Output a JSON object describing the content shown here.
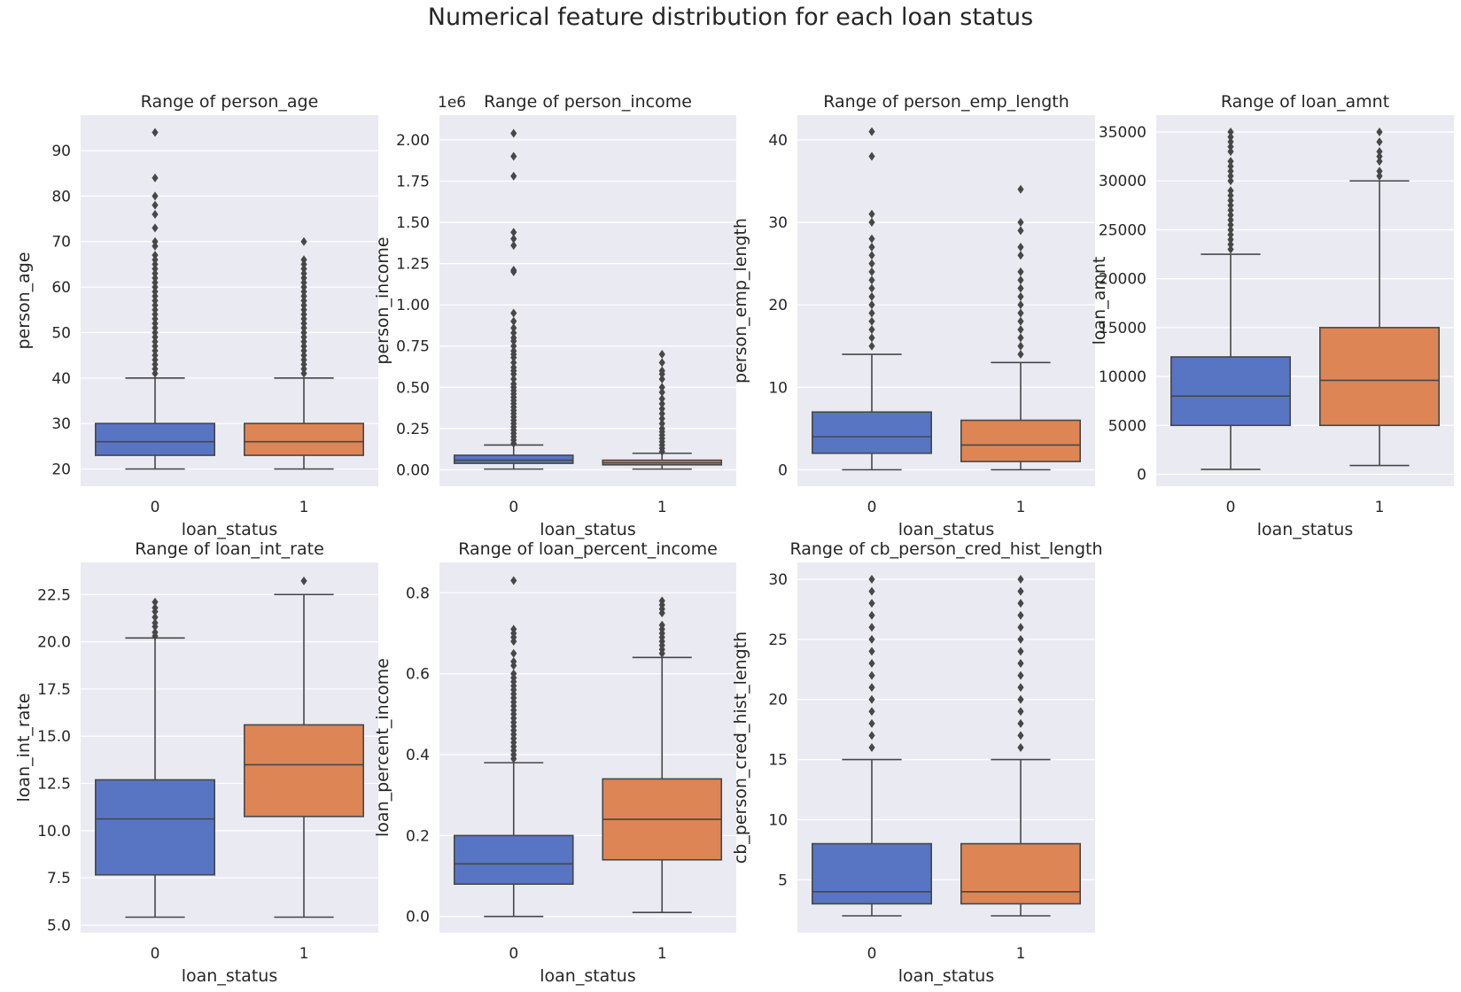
{
  "figure": {
    "suptitle": "Numerical feature distribution for each loan status"
  },
  "colors": {
    "panel_bg": "#eaeaf2",
    "grid": "#ffffff",
    "class0": "#5875c4",
    "class1": "#dd8555",
    "line": "#474747"
  },
  "chart_data": [
    {
      "type": "box",
      "title": "Range of person_age",
      "xlabel": "loan_status",
      "ylabel": "person_age",
      "categories": [
        "0",
        "1"
      ],
      "ylim": [
        16.2,
        97.8
      ],
      "yticks": [
        20,
        30,
        40,
        50,
        60,
        70,
        80,
        90
      ],
      "ytick_labels": [
        "20",
        "30",
        "40",
        "50",
        "60",
        "70",
        "80",
        "90"
      ],
      "boxes": [
        {
          "whislo": 20,
          "q1": 23,
          "med": 26,
          "q3": 30,
          "whishi": 40,
          "fliers": [
            41,
            42,
            43,
            44,
            45,
            46,
            47,
            48,
            49,
            50,
            51,
            52,
            53,
            54,
            55,
            56,
            57,
            58,
            59,
            60,
            61,
            62,
            63,
            64,
            65,
            66,
            67,
            69,
            70,
            73,
            76,
            78,
            80,
            84,
            94
          ]
        },
        {
          "whislo": 20,
          "q1": 23,
          "med": 26,
          "q3": 30,
          "whishi": 40,
          "fliers": [
            41,
            42,
            43,
            44,
            45,
            46,
            47,
            48,
            49,
            50,
            51,
            52,
            53,
            54,
            55,
            56,
            57,
            58,
            59,
            60,
            61,
            62,
            63,
            64,
            65,
            66,
            70
          ]
        }
      ]
    },
    {
      "type": "box",
      "title": "Range of person_income",
      "xlabel": "loan_status",
      "ylabel": "person_income",
      "offset_label": "1e6",
      "categories": [
        "0",
        "1"
      ],
      "ylim": [
        -0.1,
        2.15
      ],
      "yticks": [
        0,
        0.25,
        0.5,
        0.75,
        1.0,
        1.25,
        1.5,
        1.75,
        2.0
      ],
      "ytick_labels": [
        "0.00",
        "0.25",
        "0.50",
        "0.75",
        "1.00",
        "1.25",
        "1.50",
        "1.75",
        "2.00"
      ],
      "boxes": [
        {
          "whislo": 0.004,
          "q1": 0.039,
          "med": 0.058,
          "q3": 0.088,
          "whishi": 0.15,
          "fliers": [
            0.16,
            0.18,
            0.2,
            0.22,
            0.24,
            0.26,
            0.28,
            0.3,
            0.32,
            0.34,
            0.36,
            0.38,
            0.4,
            0.42,
            0.44,
            0.46,
            0.48,
            0.5,
            0.52,
            0.55,
            0.58,
            0.6,
            0.62,
            0.65,
            0.68,
            0.7,
            0.72,
            0.75,
            0.78,
            0.8,
            0.83,
            0.86,
            0.9,
            0.95,
            1.2,
            1.21,
            1.36,
            1.4,
            1.44,
            1.78,
            1.9,
            2.04
          ]
        },
        {
          "whislo": 0.004,
          "q1": 0.03,
          "med": 0.042,
          "q3": 0.058,
          "whishi": 0.1,
          "fliers": [
            0.11,
            0.13,
            0.15,
            0.17,
            0.19,
            0.21,
            0.23,
            0.25,
            0.28,
            0.31,
            0.34,
            0.37,
            0.4,
            0.43,
            0.47,
            0.5,
            0.55,
            0.58,
            0.6,
            0.65,
            0.7
          ]
        }
      ]
    },
    {
      "type": "box",
      "title": "Range of person_emp_length",
      "xlabel": "loan_status",
      "ylabel": "person_emp_length",
      "categories": [
        "0",
        "1"
      ],
      "ylim": [
        -2.0,
        43.0
      ],
      "yticks": [
        0,
        10,
        20,
        30,
        40
      ],
      "ytick_labels": [
        "0",
        "10",
        "20",
        "30",
        "40"
      ],
      "boxes": [
        {
          "whislo": 0,
          "q1": 2,
          "med": 4,
          "q3": 7,
          "whishi": 14,
          "fliers": [
            15,
            16,
            17,
            18,
            19,
            20,
            21,
            22,
            23,
            24,
            25,
            26,
            27,
            28,
            30,
            31,
            38,
            41
          ]
        },
        {
          "whislo": 0,
          "q1": 1,
          "med": 3,
          "q3": 6,
          "whishi": 13,
          "fliers": [
            14,
            15,
            16,
            17,
            18,
            19,
            20,
            21,
            22,
            23,
            24,
            26,
            27,
            29,
            30,
            34
          ]
        }
      ]
    },
    {
      "type": "box",
      "title": "Range of loan_amnt",
      "xlabel": "loan_status",
      "ylabel": "loan_amnt",
      "categories": [
        "0",
        "1"
      ],
      "ylim": [
        -1225,
        36725
      ],
      "yticks": [
        0,
        5000,
        10000,
        15000,
        20000,
        25000,
        30000,
        35000
      ],
      "ytick_labels": [
        "0",
        "5000",
        "10000",
        "15000",
        "20000",
        "25000",
        "30000",
        "35000"
      ],
      "boxes": [
        {
          "whislo": 500,
          "q1": 5000,
          "med": 8000,
          "q3": 12000,
          "whishi": 22500,
          "fliers": [
            23000,
            23500,
            24000,
            24500,
            25000,
            25500,
            26000,
            26500,
            27000,
            27500,
            28000,
            28500,
            29000,
            30000,
            30500,
            31000,
            31500,
            32000,
            33000,
            33500,
            34000,
            34500,
            35000
          ]
        },
        {
          "whislo": 900,
          "q1": 5000,
          "med": 9600,
          "q3": 15000,
          "whishi": 30000,
          "fliers": [
            30500,
            31000,
            32000,
            32500,
            33000,
            34000,
            35000
          ]
        }
      ]
    },
    {
      "type": "box",
      "title": "Range of loan_int_rate",
      "xlabel": "loan_status",
      "ylabel": "loan_int_rate",
      "categories": [
        "0",
        "1"
      ],
      "ylim": [
        4.6,
        24.2
      ],
      "yticks": [
        5.0,
        7.5,
        10.0,
        12.5,
        15.0,
        17.5,
        20.0,
        22.5
      ],
      "ytick_labels": [
        "5.0",
        "7.5",
        "10.0",
        "12.5",
        "15.0",
        "17.5",
        "20.0",
        "22.5"
      ],
      "boxes": [
        {
          "whislo": 5.42,
          "q1": 7.66,
          "med": 10.62,
          "q3": 12.69,
          "whishi": 20.2,
          "fliers": [
            20.3,
            20.5,
            20.8,
            21.0,
            21.3,
            21.6,
            21.8,
            22.1
          ]
        },
        {
          "whislo": 5.42,
          "q1": 10.75,
          "med": 13.49,
          "q3": 15.6,
          "whishi": 22.5,
          "fliers": [
            23.22
          ]
        }
      ]
    },
    {
      "type": "box",
      "title": "Range of loan_percent_income",
      "xlabel": "loan_status",
      "ylabel": "loan_percent_income",
      "categories": [
        "0",
        "1"
      ],
      "ylim": [
        -0.04,
        0.875
      ],
      "yticks": [
        0.0,
        0.2,
        0.4,
        0.6,
        0.8
      ],
      "ytick_labels": [
        "0.0",
        "0.2",
        "0.4",
        "0.6",
        "0.8"
      ],
      "boxes": [
        {
          "whislo": 0.0,
          "q1": 0.08,
          "med": 0.13,
          "q3": 0.2,
          "whishi": 0.38,
          "fliers": [
            0.39,
            0.4,
            0.41,
            0.42,
            0.43,
            0.44,
            0.45,
            0.46,
            0.47,
            0.48,
            0.49,
            0.5,
            0.51,
            0.52,
            0.53,
            0.54,
            0.55,
            0.56,
            0.57,
            0.58,
            0.59,
            0.6,
            0.62,
            0.63,
            0.65,
            0.68,
            0.69,
            0.7,
            0.71,
            0.83
          ]
        },
        {
          "whislo": 0.01,
          "q1": 0.14,
          "med": 0.24,
          "q3": 0.34,
          "whishi": 0.64,
          "fliers": [
            0.65,
            0.66,
            0.67,
            0.68,
            0.69,
            0.7,
            0.71,
            0.72,
            0.75,
            0.76,
            0.77,
            0.78
          ]
        }
      ]
    },
    {
      "type": "box",
      "title": "Range of cb_person_cred_hist_length",
      "xlabel": "loan_status",
      "ylabel": "cb_person_cred_hist_length",
      "categories": [
        "0",
        "1"
      ],
      "ylim": [
        0.6,
        31.4
      ],
      "yticks": [
        5,
        10,
        15,
        20,
        25,
        30
      ],
      "ytick_labels": [
        "5",
        "10",
        "15",
        "20",
        "25",
        "30"
      ],
      "boxes": [
        {
          "whislo": 2,
          "q1": 3,
          "med": 4,
          "q3": 8,
          "whishi": 15,
          "fliers": [
            16,
            17,
            18,
            19,
            20,
            21,
            22,
            23,
            24,
            25,
            26,
            27,
            28,
            29,
            30
          ]
        },
        {
          "whislo": 2,
          "q1": 3,
          "med": 4,
          "q3": 8,
          "whishi": 15,
          "fliers": [
            16,
            17,
            18,
            19,
            20,
            21,
            22,
            23,
            24,
            25,
            26,
            27,
            28,
            29,
            30
          ]
        }
      ]
    }
  ]
}
